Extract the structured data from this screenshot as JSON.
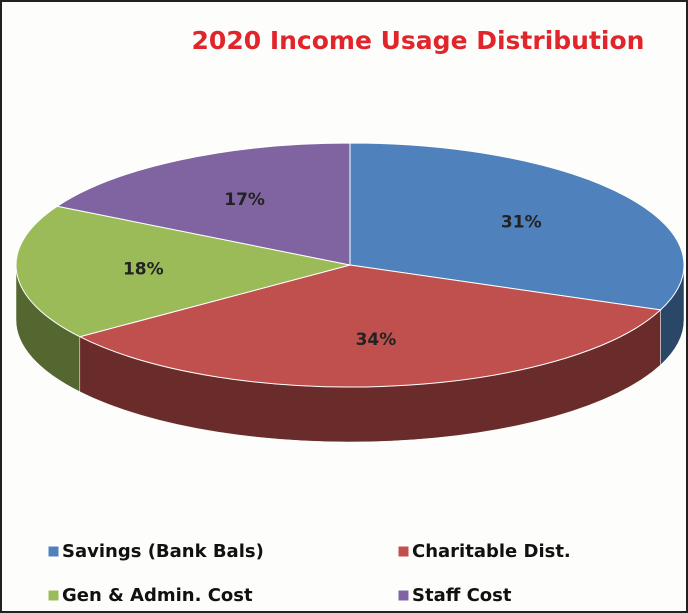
{
  "chart_data": {
    "type": "pie",
    "title": "2020 Income Usage Distribution",
    "categories": [
      "Savings (Bank Bals)",
      "Charitable Dist.",
      "Gen & Admin. Cost",
      "Staff Cost"
    ],
    "values": [
      31,
      34,
      18,
      17
    ],
    "value_labels": [
      "31%",
      "34%",
      "18%",
      "17%"
    ],
    "colors": [
      "#4f81bd",
      "#c0504d",
      "#9bbb59",
      "#8064a2"
    ]
  }
}
